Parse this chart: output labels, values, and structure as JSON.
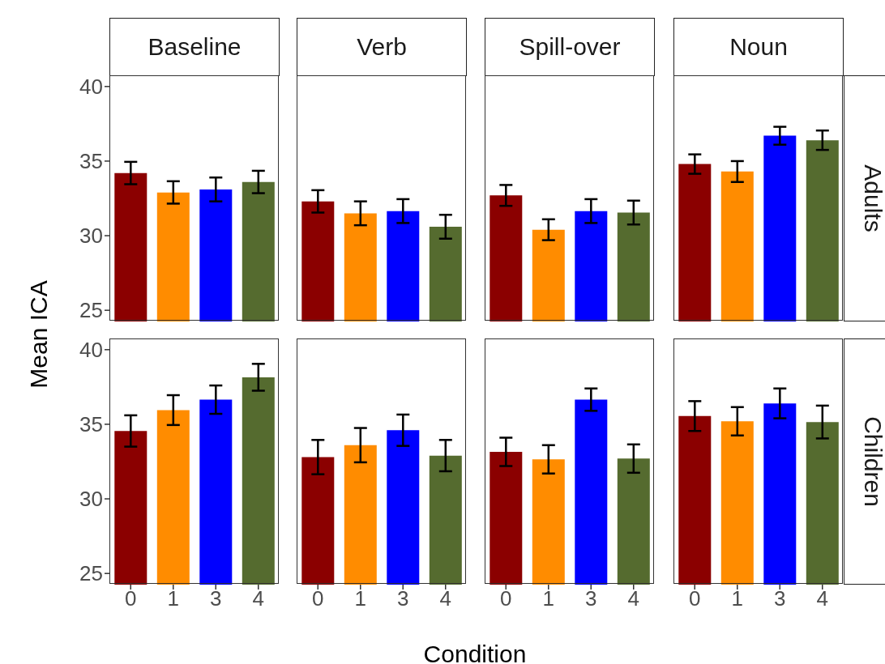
{
  "chart_data": [
    {
      "type": "bar",
      "title": "Baseline",
      "ylabel": "Mean ICA",
      "categories": [
        "0",
        "1",
        "3",
        "4"
      ],
      "values": [
        34.2,
        32.9,
        33.1,
        33.6
      ],
      "errors": [
        0.75,
        0.75,
        0.8,
        0.75
      ],
      "colors": [
        "#8b0000",
        "#ff8c00",
        "#0000ff",
        "#556b2f"
      ],
      "ylim": [
        24.25,
        40.75
      ],
      "yticks": [
        25,
        30,
        35,
        40
      ],
      "tick_labels": "y"
    },
    {
      "type": "bar",
      "title": "Verb",
      "categories": [
        "0",
        "1",
        "3",
        "4"
      ],
      "values": [
        32.3,
        31.5,
        31.65,
        30.6
      ],
      "errors": [
        0.75,
        0.8,
        0.8,
        0.8
      ],
      "colors": [
        "#8b0000",
        "#ff8c00",
        "#0000ff",
        "#556b2f"
      ],
      "ylim": [
        24.25,
        40.75
      ],
      "yticks": [
        25,
        30,
        35,
        40
      ],
      "tick_labels": false
    },
    {
      "type": "bar",
      "title": "Spill-over",
      "categories": [
        "0",
        "1",
        "3",
        "4"
      ],
      "values": [
        32.7,
        30.4,
        31.65,
        31.55
      ],
      "errors": [
        0.7,
        0.7,
        0.8,
        0.8
      ],
      "colors": [
        "#8b0000",
        "#ff8c00",
        "#0000ff",
        "#556b2f"
      ],
      "ylim": [
        24.25,
        40.75
      ],
      "yticks": [
        25,
        30,
        35,
        40
      ],
      "tick_labels": false
    },
    {
      "type": "bar",
      "title": "Noun",
      "annotations": [
        "Adults"
      ],
      "categories": [
        "0",
        "1",
        "3",
        "4"
      ],
      "values": [
        34.8,
        34.3,
        36.7,
        36.4
      ],
      "errors": [
        0.65,
        0.7,
        0.6,
        0.65
      ],
      "colors": [
        "#8b0000",
        "#ff8c00",
        "#0000ff",
        "#556b2f"
      ],
      "ylim": [
        24.25,
        40.75
      ],
      "yticks": [
        25,
        30,
        35,
        40
      ],
      "tick_labels": false
    },
    {
      "type": "bar",
      "categories": [
        "0",
        "1",
        "3",
        "4"
      ],
      "values": [
        34.55,
        35.95,
        36.65,
        38.15
      ],
      "errors": [
        1.05,
        1.0,
        0.95,
        0.9
      ],
      "colors": [
        "#8b0000",
        "#ff8c00",
        "#0000ff",
        "#556b2f"
      ],
      "ylim": [
        24.25,
        40.75
      ],
      "yticks": [
        25,
        30,
        35,
        40
      ]
    },
    {
      "type": "bar",
      "xlabel": "Condition",
      "categories": [
        "0",
        "1",
        "3",
        "4"
      ],
      "values": [
        32.8,
        33.6,
        34.6,
        32.9
      ],
      "errors": [
        1.15,
        1.15,
        1.05,
        1.05
      ],
      "colors": [
        "#8b0000",
        "#ff8c00",
        "#0000ff",
        "#556b2f"
      ],
      "ylim": [
        24.25,
        40.75
      ],
      "yticks": [
        25,
        30,
        35,
        40
      ],
      "tick_labels": "x"
    },
    {
      "type": "bar",
      "categories": [
        "0",
        "1",
        "3",
        "4"
      ],
      "values": [
        33.15,
        32.65,
        36.65,
        32.7
      ],
      "errors": [
        0.95,
        0.95,
        0.75,
        0.95
      ],
      "colors": [
        "#8b0000",
        "#ff8c00",
        "#0000ff",
        "#556b2f"
      ],
      "ylim": [
        24.25,
        40.75
      ],
      "yticks": [
        25,
        30,
        35,
        40
      ],
      "tick_labels": "x"
    },
    {
      "type": "bar",
      "annotations": [
        "Children"
      ],
      "categories": [
        "0",
        "1",
        "3",
        "4"
      ],
      "values": [
        35.55,
        35.2,
        36.4,
        35.15
      ],
      "errors": [
        1.0,
        0.95,
        1.0,
        1.1
      ],
      "colors": [
        "#8b0000",
        "#ff8c00",
        "#0000ff",
        "#556b2f"
      ],
      "ylim": [
        24.25,
        40.75
      ],
      "yticks": [
        25,
        30,
        35,
        40
      ],
      "tick_labels": "x"
    }
  ]
}
